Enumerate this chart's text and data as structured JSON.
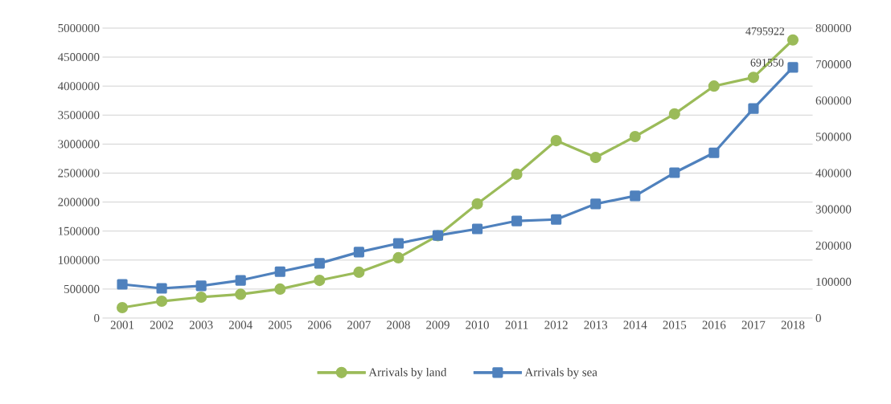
{
  "chart_data": {
    "type": "line",
    "categories": [
      "2001",
      "2002",
      "2003",
      "2004",
      "2005",
      "2006",
      "2007",
      "2008",
      "2009",
      "2010",
      "2011",
      "2012",
      "2013",
      "2014",
      "2015",
      "2016",
      "2017",
      "2018"
    ],
    "series": [
      {
        "name": "Arrivals by land",
        "color": "#9bbb59",
        "marker": "circle",
        "values": [
          180000,
          290000,
          360000,
          410000,
          500000,
          650000,
          790000,
          1040000,
          1420000,
          1970000,
          2480000,
          3060000,
          2770000,
          3130000,
          3520000,
          4000000,
          4150000,
          4795922
        ],
        "value_labels": [
          null,
          null,
          null,
          null,
          null,
          null,
          null,
          null,
          null,
          null,
          null,
          null,
          null,
          null,
          null,
          null,
          null,
          "4795922"
        ]
      },
      {
        "name": "Arrivals by sea",
        "color": "#4f81bd",
        "marker": "square",
        "axis": "y2",
        "values": [
          93000,
          82000,
          89000,
          104000,
          128000,
          151000,
          182000,
          206000,
          228000,
          246000,
          268000,
          272000,
          315000,
          337000,
          401000,
          456000,
          578000,
          691550
        ],
        "value_labels": [
          null,
          null,
          null,
          null,
          null,
          null,
          null,
          null,
          null,
          null,
          null,
          null,
          null,
          null,
          null,
          null,
          null,
          "691550"
        ]
      }
    ],
    "ylim": [
      0,
      5000000
    ],
    "yticks": [
      0,
      500000,
      1000000,
      1500000,
      2000000,
      2500000,
      3000000,
      3500000,
      4000000,
      4500000,
      5000000
    ],
    "y2lim": [
      0,
      800000
    ],
    "y2ticks": [
      0,
      100000,
      200000,
      300000,
      400000,
      500000,
      600000,
      700000,
      800000
    ],
    "grid": "y",
    "legend": "bottom",
    "line_style": "solid"
  }
}
